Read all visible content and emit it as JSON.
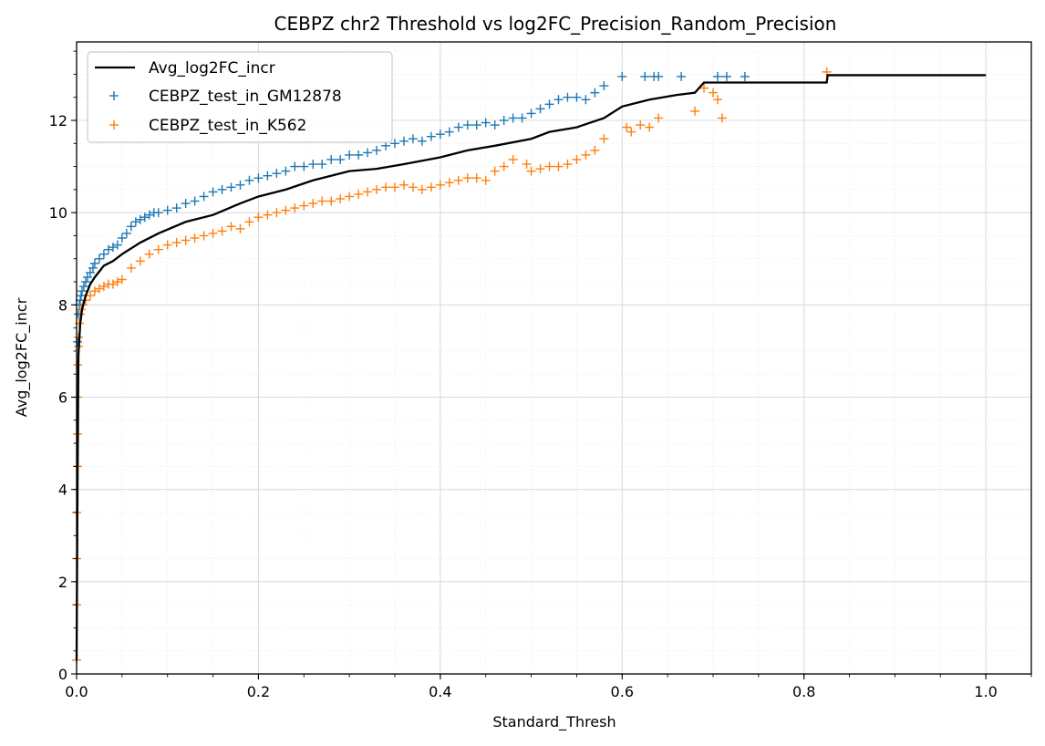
{
  "chart_data": {
    "type": "line",
    "title": "CEBPZ chr2 Threshold vs log2FC_Precision_Random_Precision",
    "xlabel": "Standard_Thresh",
    "ylabel": "Avg_log2FC_incr",
    "xlim": [
      0.0,
      1.05
    ],
    "ylim": [
      0,
      13.7
    ],
    "x_ticks": [
      0.0,
      0.2,
      0.4,
      0.6,
      0.8,
      1.0
    ],
    "x_tick_labels": [
      "0.0",
      "0.2",
      "0.4",
      "0.6",
      "0.8",
      "1.0"
    ],
    "y_ticks": [
      0,
      2,
      4,
      6,
      8,
      10,
      12
    ],
    "y_tick_labels": [
      "0",
      "2",
      "4",
      "6",
      "8",
      "10",
      "12"
    ],
    "grid": true,
    "minor_grid": true,
    "legend_position": "top-left",
    "series": [
      {
        "name": "Avg_log2FC_incr",
        "kind": "line",
        "color": "#000000",
        "x": [
          0.0,
          0.001,
          0.002,
          0.004,
          0.006,
          0.01,
          0.015,
          0.02,
          0.03,
          0.04,
          0.05,
          0.07,
          0.09,
          0.12,
          0.15,
          0.18,
          0.2,
          0.23,
          0.26,
          0.3,
          0.33,
          0.36,
          0.4,
          0.43,
          0.46,
          0.5,
          0.52,
          0.55,
          0.58,
          0.6,
          0.63,
          0.66,
          0.68,
          0.69,
          0.75,
          0.8,
          0.825,
          0.826,
          0.9,
          1.0
        ],
        "y": [
          0.3,
          4.0,
          6.9,
          7.6,
          7.9,
          8.2,
          8.45,
          8.6,
          8.85,
          8.95,
          9.1,
          9.35,
          9.55,
          9.8,
          9.95,
          10.2,
          10.35,
          10.5,
          10.7,
          10.9,
          10.95,
          11.05,
          11.2,
          11.35,
          11.45,
          11.6,
          11.75,
          11.85,
          12.05,
          12.3,
          12.45,
          12.55,
          12.6,
          12.82,
          12.82,
          12.82,
          12.82,
          12.98,
          12.98,
          12.98
        ]
      },
      {
        "name": "CEBPZ_test_in_GM12878",
        "kind": "scatter",
        "marker": "+",
        "color": "#1f77b4",
        "x": [
          0.001,
          0.002,
          0.003,
          0.004,
          0.005,
          0.006,
          0.008,
          0.01,
          0.012,
          0.015,
          0.018,
          0.02,
          0.025,
          0.03,
          0.035,
          0.04,
          0.045,
          0.05,
          0.055,
          0.06,
          0.065,
          0.07,
          0.075,
          0.08,
          0.085,
          0.09,
          0.1,
          0.11,
          0.12,
          0.13,
          0.14,
          0.15,
          0.16,
          0.17,
          0.18,
          0.19,
          0.2,
          0.21,
          0.22,
          0.23,
          0.24,
          0.25,
          0.26,
          0.27,
          0.28,
          0.29,
          0.3,
          0.31,
          0.32,
          0.33,
          0.34,
          0.35,
          0.36,
          0.37,
          0.38,
          0.39,
          0.4,
          0.41,
          0.42,
          0.43,
          0.44,
          0.45,
          0.46,
          0.47,
          0.48,
          0.49,
          0.5,
          0.51,
          0.52,
          0.53,
          0.54,
          0.55,
          0.56,
          0.57,
          0.58,
          0.6,
          0.625,
          0.635,
          0.64,
          0.665,
          0.705,
          0.715,
          0.735
        ],
        "y": [
          7.2,
          7.8,
          8.0,
          8.1,
          8.2,
          8.3,
          8.4,
          8.5,
          8.6,
          8.7,
          8.8,
          8.9,
          9.0,
          9.1,
          9.2,
          9.25,
          9.3,
          9.45,
          9.55,
          9.7,
          9.8,
          9.85,
          9.9,
          9.95,
          10.0,
          10.0,
          10.05,
          10.1,
          10.2,
          10.25,
          10.35,
          10.45,
          10.5,
          10.55,
          10.6,
          10.7,
          10.75,
          10.8,
          10.85,
          10.9,
          11.0,
          11.0,
          11.05,
          11.05,
          11.15,
          11.15,
          11.25,
          11.25,
          11.3,
          11.35,
          11.45,
          11.5,
          11.55,
          11.6,
          11.55,
          11.65,
          11.7,
          11.75,
          11.85,
          11.9,
          11.9,
          11.95,
          11.9,
          12.0,
          12.05,
          12.05,
          12.15,
          12.25,
          12.35,
          12.45,
          12.5,
          12.5,
          12.45,
          12.6,
          12.75,
          12.95,
          12.95,
          12.95,
          12.95,
          12.95,
          12.95,
          12.95,
          12.95
        ]
      },
      {
        "name": "CEBPZ_test_in_K562",
        "kind": "scatter",
        "marker": "+",
        "color": "#ff7f0e",
        "x": [
          0.0,
          0.0,
          0.0,
          0.0,
          0.001,
          0.001,
          0.001,
          0.001,
          0.002,
          0.002,
          0.003,
          0.004,
          0.005,
          0.007,
          0.01,
          0.015,
          0.02,
          0.025,
          0.03,
          0.035,
          0.04,
          0.045,
          0.05,
          0.06,
          0.07,
          0.08,
          0.09,
          0.1,
          0.11,
          0.12,
          0.13,
          0.14,
          0.15,
          0.16,
          0.17,
          0.18,
          0.19,
          0.2,
          0.21,
          0.22,
          0.23,
          0.24,
          0.25,
          0.26,
          0.27,
          0.28,
          0.29,
          0.3,
          0.31,
          0.32,
          0.33,
          0.34,
          0.35,
          0.36,
          0.37,
          0.38,
          0.39,
          0.4,
          0.41,
          0.42,
          0.43,
          0.44,
          0.45,
          0.46,
          0.47,
          0.48,
          0.495,
          0.5,
          0.51,
          0.52,
          0.53,
          0.54,
          0.55,
          0.56,
          0.57,
          0.58,
          0.605,
          0.61,
          0.62,
          0.63,
          0.64,
          0.68,
          0.69,
          0.7,
          0.705,
          0.71,
          0.825
        ],
        "y": [
          0.3,
          1.5,
          2.5,
          3.5,
          4.5,
          5.2,
          6.0,
          6.7,
          7.1,
          7.3,
          7.6,
          7.8,
          7.9,
          8.0,
          8.1,
          8.2,
          8.3,
          8.35,
          8.4,
          8.45,
          8.45,
          8.5,
          8.55,
          8.8,
          8.95,
          9.1,
          9.2,
          9.3,
          9.35,
          9.4,
          9.45,
          9.5,
          9.55,
          9.6,
          9.7,
          9.65,
          9.8,
          9.9,
          9.95,
          10.0,
          10.05,
          10.1,
          10.15,
          10.2,
          10.25,
          10.25,
          10.3,
          10.35,
          10.4,
          10.45,
          10.5,
          10.55,
          10.55,
          10.6,
          10.55,
          10.5,
          10.55,
          10.6,
          10.65,
          10.7,
          10.75,
          10.75,
          10.7,
          10.9,
          11.0,
          11.15,
          11.05,
          10.9,
          10.95,
          11.0,
          11.0,
          11.05,
          11.15,
          11.25,
          11.35,
          11.6,
          11.85,
          11.75,
          11.9,
          11.85,
          12.05,
          12.2,
          12.7,
          12.6,
          12.45,
          12.05,
          13.05
        ]
      }
    ]
  }
}
